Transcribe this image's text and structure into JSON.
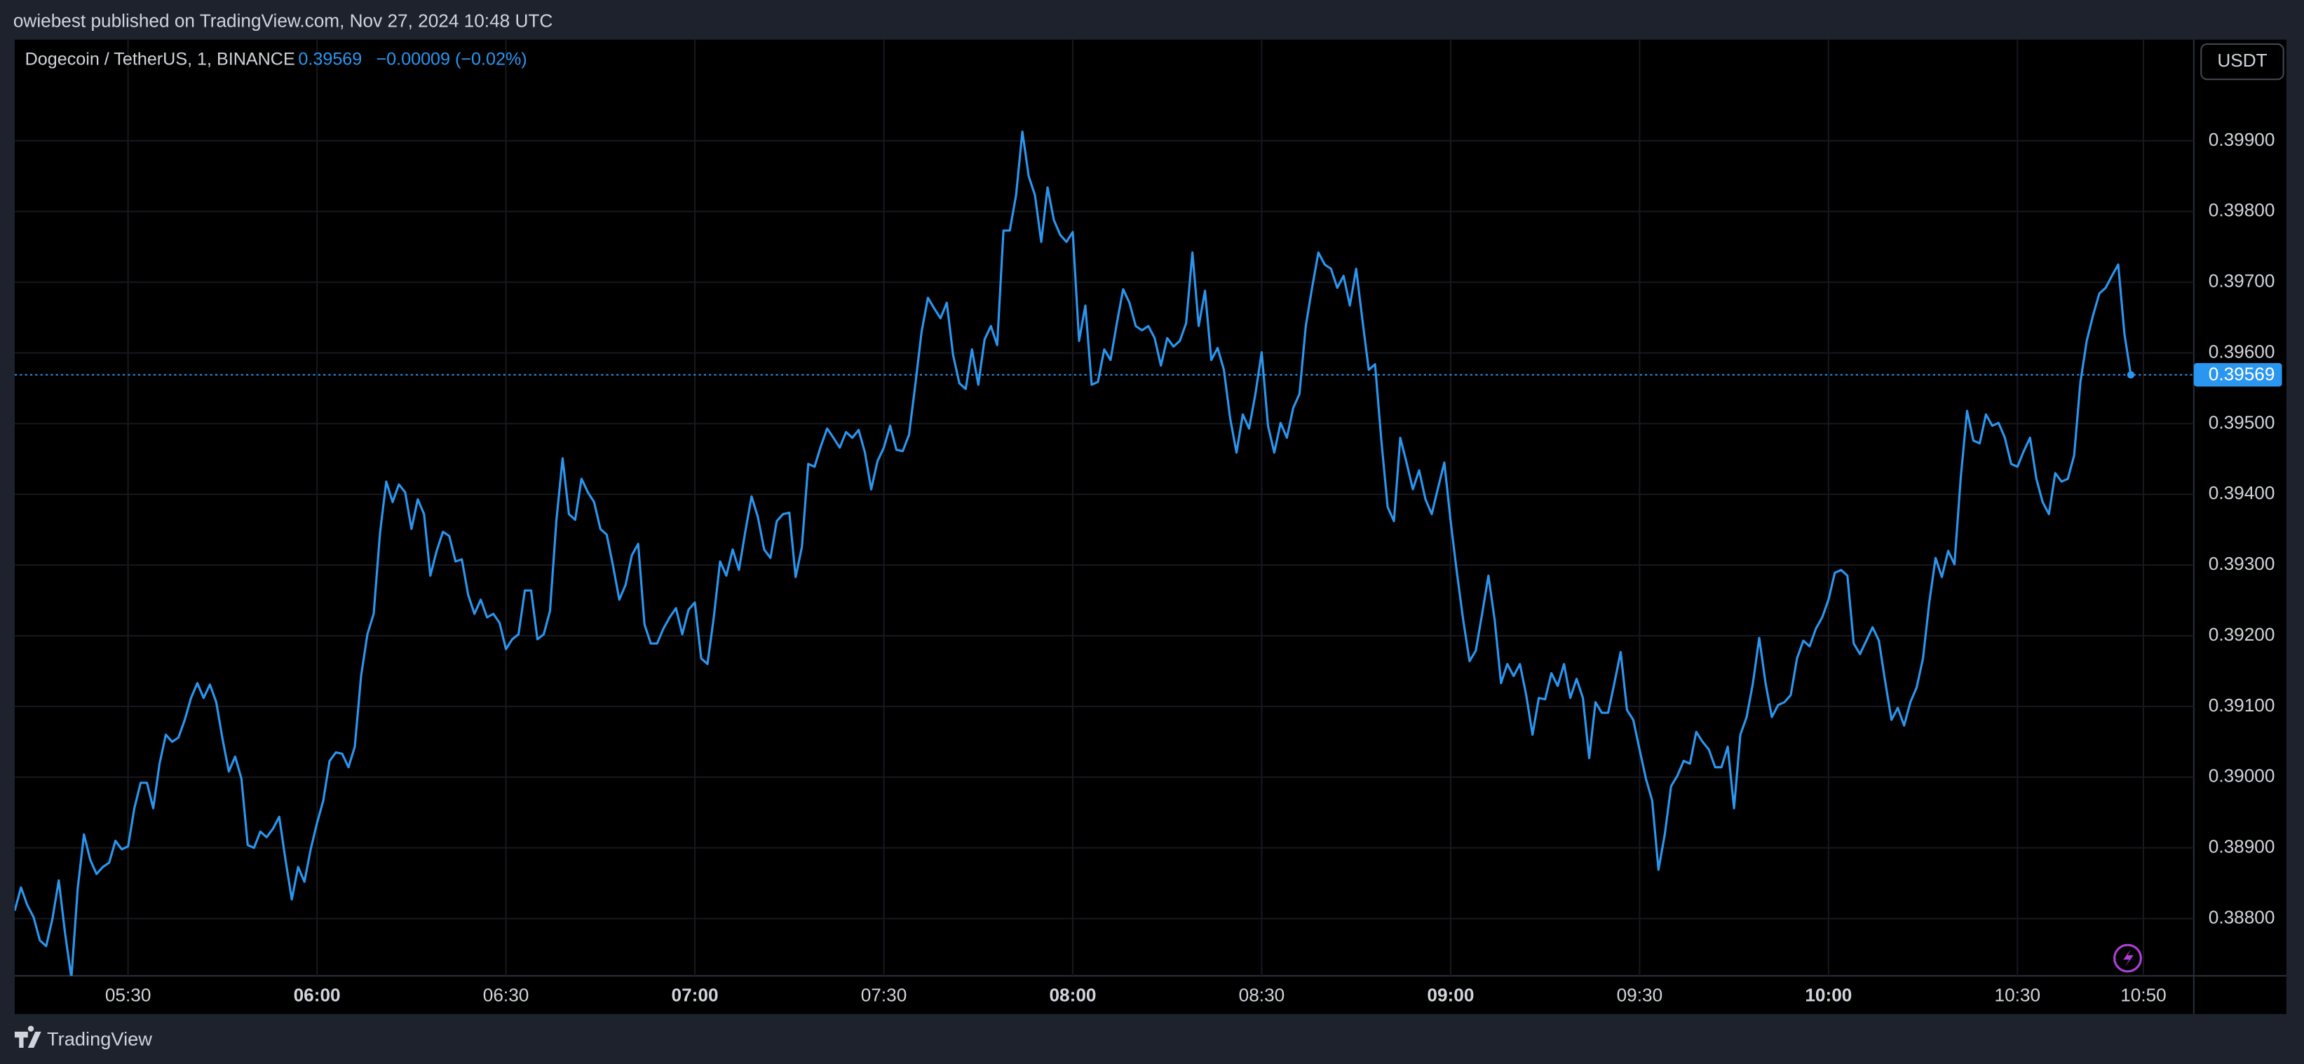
{
  "header": {
    "published": "owiebest published on TradingView.com, Nov 27, 2024 10:48 UTC"
  },
  "footer": {
    "brand": "TradingView"
  },
  "chart_data": {
    "type": "line",
    "title": "Dogecoin / TetherUS, 1, BINANCE",
    "last_price": 0.39569,
    "change": "−0.00009 (−0.02%)",
    "currency": "USDT",
    "grid": true,
    "color": "#2b96f0",
    "xlim": [
      "05:12",
      "10:58"
    ],
    "ylim": [
      0.38719,
      0.40043
    ],
    "xticks": [
      "05:30",
      "06:00",
      "06:30",
      "07:00",
      "07:30",
      "08:00",
      "08:30",
      "09:00",
      "09:30",
      "10:00",
      "10:30",
      "10:50"
    ],
    "yticks": [
      {
        "value": 0.388,
        "label": "0.38800"
      },
      {
        "value": 0.389,
        "label": "0.38900"
      },
      {
        "value": 0.39,
        "label": "0.39000"
      },
      {
        "value": 0.391,
        "label": "0.39100"
      },
      {
        "value": 0.392,
        "label": "0.39200"
      },
      {
        "value": 0.393,
        "label": "0.39300"
      },
      {
        "value": 0.394,
        "label": "0.39400"
      },
      {
        "value": 0.395,
        "label": "0.39500"
      },
      {
        "value": 0.396,
        "label": "0.39600"
      },
      {
        "value": 0.397,
        "label": "0.39700"
      },
      {
        "value": 0.398,
        "label": "0.39800"
      },
      {
        "value": 0.399,
        "label": "0.39900"
      }
    ],
    "x": [
      "05:12",
      "05:13",
      "05:14",
      "05:15",
      "05:16",
      "05:17",
      "05:18",
      "05:19",
      "05:20",
      "05:21",
      "05:22",
      "05:23",
      "05:24",
      "05:25",
      "05:26",
      "05:27",
      "05:28",
      "05:29",
      "05:30",
      "05:31",
      "05:32",
      "05:33",
      "05:34",
      "05:35",
      "05:36",
      "05:37",
      "05:38",
      "05:39",
      "05:40",
      "05:41",
      "05:42",
      "05:43",
      "05:44",
      "05:45",
      "05:46",
      "05:47",
      "05:48",
      "05:49",
      "05:50",
      "05:51",
      "05:52",
      "05:53",
      "05:54",
      "05:55",
      "05:56",
      "05:57",
      "05:58",
      "05:59",
      "06:00",
      "06:01",
      "06:02",
      "06:03",
      "06:04",
      "06:05",
      "06:06",
      "06:07",
      "06:08",
      "06:09",
      "06:10",
      "06:11",
      "06:12",
      "06:13",
      "06:14",
      "06:15",
      "06:16",
      "06:17",
      "06:18",
      "06:19",
      "06:20",
      "06:21",
      "06:22",
      "06:23",
      "06:24",
      "06:25",
      "06:26",
      "06:27",
      "06:28",
      "06:29",
      "06:30",
      "06:31",
      "06:32",
      "06:33",
      "06:34",
      "06:35",
      "06:36",
      "06:37",
      "06:38",
      "06:39",
      "06:40",
      "06:41",
      "06:42",
      "06:43",
      "06:44",
      "06:45",
      "06:46",
      "06:47",
      "06:48",
      "06:49",
      "06:50",
      "06:51",
      "06:52",
      "06:53",
      "06:54",
      "06:55",
      "06:56",
      "06:57",
      "06:58",
      "06:59",
      "07:00",
      "07:01",
      "07:02",
      "07:03",
      "07:04",
      "07:05",
      "07:06",
      "07:07",
      "07:08",
      "07:09",
      "07:10",
      "07:11",
      "07:12",
      "07:13",
      "07:14",
      "07:15",
      "07:16",
      "07:17",
      "07:18",
      "07:19",
      "07:20",
      "07:21",
      "07:22",
      "07:23",
      "07:24",
      "07:25",
      "07:26",
      "07:27",
      "07:28",
      "07:29",
      "07:30",
      "07:31",
      "07:32",
      "07:33",
      "07:34",
      "07:35",
      "07:36",
      "07:37",
      "07:38",
      "07:39",
      "07:40",
      "07:41",
      "07:42",
      "07:43",
      "07:44",
      "07:45",
      "07:46",
      "07:47",
      "07:48",
      "07:49",
      "07:50",
      "07:51",
      "07:52",
      "07:53",
      "07:54",
      "07:55",
      "07:56",
      "07:57",
      "07:58",
      "07:59",
      "08:00",
      "08:01",
      "08:02",
      "08:03",
      "08:04",
      "08:05",
      "08:06",
      "08:07",
      "08:08",
      "08:09",
      "08:10",
      "08:11",
      "08:12",
      "08:13",
      "08:14",
      "08:15",
      "08:16",
      "08:17",
      "08:18",
      "08:19",
      "08:20",
      "08:21",
      "08:22",
      "08:23",
      "08:24",
      "08:25",
      "08:26",
      "08:27",
      "08:28",
      "08:29",
      "08:30",
      "08:31",
      "08:32",
      "08:33",
      "08:34",
      "08:35",
      "08:36",
      "08:37",
      "08:38",
      "08:39",
      "08:40",
      "08:41",
      "08:42",
      "08:43",
      "08:44",
      "08:45",
      "08:46",
      "08:47",
      "08:48",
      "08:49",
      "08:50",
      "08:51",
      "08:52",
      "08:53",
      "08:54",
      "08:55",
      "08:56",
      "08:57",
      "08:58",
      "08:59",
      "09:00",
      "09:01",
      "09:02",
      "09:03",
      "09:04",
      "09:05",
      "09:06",
      "09:07",
      "09:08",
      "09:09",
      "09:10",
      "09:11",
      "09:12",
      "09:13",
      "09:14",
      "09:15",
      "09:16",
      "09:17",
      "09:18",
      "09:19",
      "09:20",
      "09:21",
      "09:22",
      "09:23",
      "09:24",
      "09:25",
      "09:26",
      "09:27",
      "09:28",
      "09:29",
      "09:30",
      "09:31",
      "09:32",
      "09:33",
      "09:34",
      "09:35",
      "09:36",
      "09:37",
      "09:38",
      "09:39",
      "09:40",
      "09:41",
      "09:42",
      "09:43",
      "09:44",
      "09:45",
      "09:46",
      "09:47",
      "09:48",
      "09:49",
      "09:50",
      "09:51",
      "09:52",
      "09:53",
      "09:54",
      "09:55",
      "09:56",
      "09:57",
      "09:58",
      "09:59",
      "10:00",
      "10:01",
      "10:02",
      "10:03",
      "10:04",
      "10:05",
      "10:06",
      "10:07",
      "10:08",
      "10:09",
      "10:10",
      "10:11",
      "10:12",
      "10:13",
      "10:14",
      "10:15",
      "10:16",
      "10:17",
      "10:18",
      "10:19",
      "10:20",
      "10:21",
      "10:22",
      "10:23",
      "10:24",
      "10:25",
      "10:26",
      "10:27",
      "10:28",
      "10:29",
      "10:30",
      "10:31",
      "10:32",
      "10:33",
      "10:34",
      "10:35",
      "10:36",
      "10:37",
      "10:38",
      "10:39",
      "10:40",
      "10:41",
      "10:42",
      "10:43",
      "10:44",
      "10:45",
      "10:46",
      "10:47",
      "10:48"
    ],
    "values": [
      0.38811,
      0.38844,
      0.38819,
      0.38802,
      0.38769,
      0.38761,
      0.388,
      0.38854,
      0.38779,
      0.38716,
      0.38842,
      0.38919,
      0.38883,
      0.38863,
      0.38873,
      0.38879,
      0.3891,
      0.38898,
      0.38902,
      0.38956,
      0.38992,
      0.38992,
      0.38956,
      0.39019,
      0.3906,
      0.3905,
      0.39056,
      0.39081,
      0.39112,
      0.39133,
      0.39112,
      0.39131,
      0.39106,
      0.39054,
      0.39008,
      0.39029,
      0.38998,
      0.38904,
      0.389,
      0.38923,
      0.38915,
      0.38927,
      0.38944,
      0.38883,
      0.38827,
      0.38873,
      0.38852,
      0.38898,
      0.38935,
      0.38967,
      0.39023,
      0.39035,
      0.39033,
      0.39014,
      0.39043,
      0.39143,
      0.39202,
      0.39231,
      0.39345,
      0.39418,
      0.39389,
      0.39414,
      0.39403,
      0.39351,
      0.39393,
      0.39372,
      0.39285,
      0.3932,
      0.39347,
      0.39341,
      0.39305,
      0.39308,
      0.39258,
      0.39231,
      0.39251,
      0.39226,
      0.39231,
      0.39218,
      0.39181,
      0.39195,
      0.39202,
      0.39264,
      0.39264,
      0.39195,
      0.39202,
      0.39235,
      0.39362,
      0.39451,
      0.39372,
      0.39364,
      0.39422,
      0.39403,
      0.39389,
      0.39351,
      0.39343,
      0.39299,
      0.39251,
      0.39272,
      0.39314,
      0.3933,
      0.39216,
      0.39189,
      0.39189,
      0.3921,
      0.39226,
      0.39239,
      0.39202,
      0.39237,
      0.39247,
      0.39168,
      0.3916,
      0.39226,
      0.39305,
      0.39285,
      0.39322,
      0.39293,
      0.39347,
      0.39397,
      0.39368,
      0.39322,
      0.3931,
      0.39362,
      0.39372,
      0.39374,
      0.39283,
      0.39326,
      0.39443,
      0.39439,
      0.39468,
      0.39493,
      0.3948,
      0.39466,
      0.39488,
      0.3948,
      0.39491,
      0.39459,
      0.39407,
      0.39447,
      0.39466,
      0.39497,
      0.39463,
      0.39461,
      0.39484,
      0.39555,
      0.3963,
      0.39678,
      0.39663,
      0.39649,
      0.39671,
      0.39597,
      0.39557,
      0.39549,
      0.39605,
      0.39555,
      0.39619,
      0.39638,
      0.39611,
      0.39773,
      0.39773,
      0.39823,
      0.39913,
      0.3985,
      0.39823,
      0.39757,
      0.39834,
      0.39788,
      0.39767,
      0.39757,
      0.39771,
      0.39617,
      0.39667,
      0.39555,
      0.39559,
      0.39605,
      0.3959,
      0.39642,
      0.3969,
      0.39671,
      0.39638,
      0.39632,
      0.39638,
      0.39621,
      0.39582,
      0.39621,
      0.39609,
      0.39617,
      0.39642,
      0.39742,
      0.39638,
      0.39688,
      0.3959,
      0.39607,
      0.39576,
      0.39507,
      0.39459,
      0.39513,
      0.39493,
      0.39542,
      0.39601,
      0.39497,
      0.39459,
      0.39501,
      0.3948,
      0.39522,
      0.39542,
      0.39638,
      0.39692,
      0.39742,
      0.39725,
      0.39719,
      0.39692,
      0.39709,
      0.39667,
      0.39719,
      0.39646,
      0.39576,
      0.39584,
      0.39476,
      0.39382,
      0.39362,
      0.3948,
      0.39445,
      0.39407,
      0.39434,
      0.39393,
      0.39372,
      0.39409,
      0.39445,
      0.39362,
      0.39289,
      0.39222,
      0.39164,
      0.39179,
      0.39231,
      0.39285,
      0.39222,
      0.39133,
      0.3916,
      0.39143,
      0.3916,
      0.39116,
      0.3906,
      0.39112,
      0.3911,
      0.39147,
      0.39129,
      0.3916,
      0.39112,
      0.39139,
      0.39112,
      0.39027,
      0.39106,
      0.39091,
      0.39091,
      0.39133,
      0.39177,
      0.39095,
      0.39081,
      0.39039,
      0.38998,
      0.38967,
      0.38869,
      0.38919,
      0.38987,
      0.39002,
      0.39023,
      0.39019,
      0.39064,
      0.3905,
      0.39039,
      0.39014,
      0.39014,
      0.39043,
      0.38956,
      0.3906,
      0.39085,
      0.39133,
      0.39197,
      0.39133,
      0.39085,
      0.39102,
      0.39106,
      0.39116,
      0.39168,
      0.39193,
      0.39185,
      0.3921,
      0.39226,
      0.39251,
      0.39289,
      0.39293,
      0.39285,
      0.39189,
      0.39174,
      0.39193,
      0.39212,
      0.39193,
      0.39135,
      0.39081,
      0.39098,
      0.39073,
      0.39106,
      0.39127,
      0.39168,
      0.39247,
      0.3931,
      0.39283,
      0.3932,
      0.39301,
      0.39424,
      0.39518,
      0.39476,
      0.39472,
      0.39513,
      0.39497,
      0.39501,
      0.3948,
      0.39443,
      0.39439,
      0.39461,
      0.3948,
      0.39422,
      0.39389,
      0.39372,
      0.3943,
      0.39418,
      0.39422,
      0.39455,
      0.39559,
      0.39617,
      0.39653,
      0.39684,
      0.39692,
      0.39709,
      0.39725,
      0.39626,
      0.39569
    ]
  }
}
